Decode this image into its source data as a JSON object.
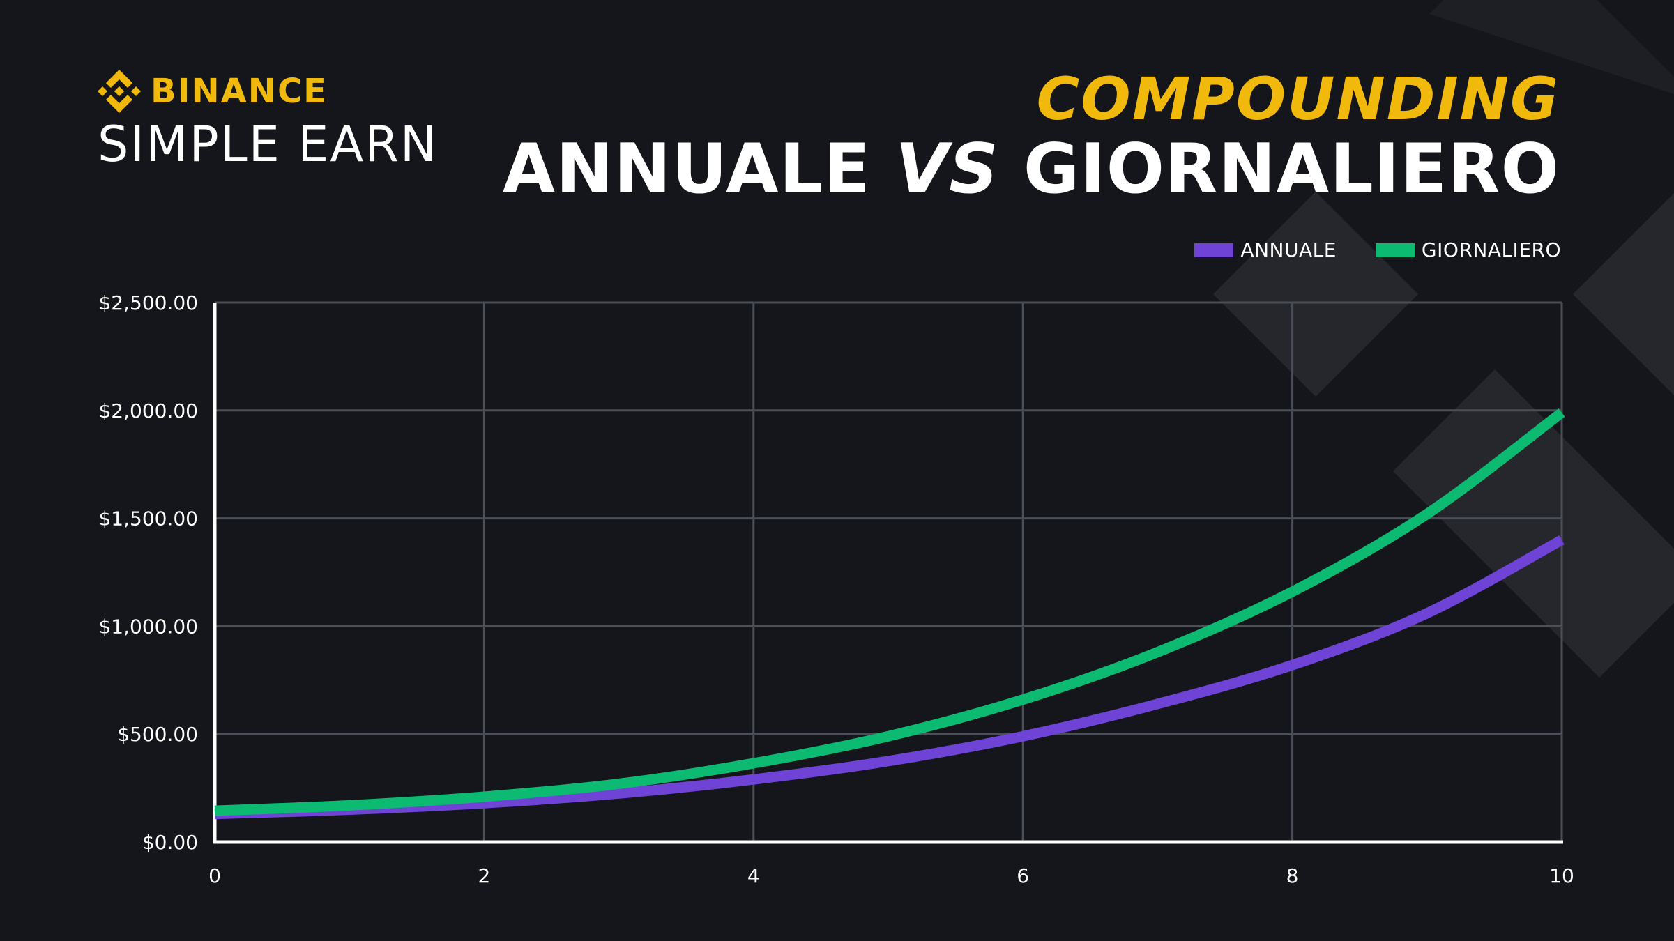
{
  "brand": {
    "name": "BINANCE",
    "product": "SIMPLE EARN",
    "color": "#F0B90B"
  },
  "header": {
    "subtitle": "COMPOUNDING",
    "title_left": "ANNUALE",
    "title_vs": "VS",
    "title_right": "GIORNALIERO"
  },
  "colors": {
    "background": "#15161b",
    "accent": "#F0B90B",
    "annuale": "#6f43d6",
    "giornaliero": "#0cba71",
    "grid": "#4b4f58"
  },
  "chart_data": {
    "type": "line",
    "legend": "top-right",
    "grid": true,
    "xlim": [
      0,
      10
    ],
    "ylim": [
      0,
      2500
    ],
    "x_ticks": [
      "0",
      "2",
      "4",
      "6",
      "8",
      "10"
    ],
    "y_ticks": [
      "$0.00",
      "$500.00",
      "$1,000.00",
      "$1,500.00",
      "$2,000.00",
      "$2,500.00"
    ],
    "series": [
      {
        "name": "ANNUALE",
        "color": "#6f43d6",
        "x": [
          0,
          1,
          2,
          3,
          4,
          5,
          6,
          7,
          8,
          9,
          10
        ],
        "y": [
          130,
          150,
          180,
          225,
          290,
          375,
          490,
          640,
          820,
          1060,
          1400
        ]
      },
      {
        "name": "GIORNALIERO",
        "color": "#0cba71",
        "x": [
          0,
          1,
          2,
          3,
          4,
          5,
          6,
          7,
          8,
          9,
          10
        ],
        "y": [
          145,
          170,
          210,
          270,
          365,
          490,
          660,
          880,
          1160,
          1520,
          1990
        ]
      }
    ]
  }
}
